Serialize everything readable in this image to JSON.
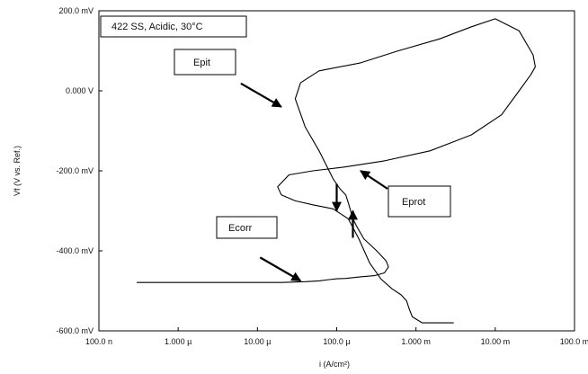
{
  "chart_data": {
    "type": "line",
    "title": "422 SS, Acidic, 30°C",
    "xlabel": "i (A/cm²)",
    "ylabel": "Vf (V vs. Ref.)",
    "x_scale": "log",
    "xlim": [
      1e-07,
      0.1
    ],
    "ylim": [
      -0.6,
      0.2
    ],
    "x_tick_labels": [
      "100.0 n",
      "1.000 µ",
      "10.00 µ",
      "100.0 µ",
      "1.000 m",
      "10.00 m",
      "100.0 m"
    ],
    "y_tick_labels": [
      "200.0 mV",
      "0.000 V",
      "-200.0 mV",
      "-400.0 mV",
      "-600.0 mV"
    ],
    "grid": false,
    "series": [
      {
        "x": [
          3e-07,
          5e-06,
          2e-05,
          4e-05,
          6e-05,
          8e-05,
          0.0001,
          0.00013,
          0.00016,
          0.0002,
          0.0003,
          0.0004,
          0.00045,
          0.00042,
          0.00032,
          0.00022,
          0.00018,
          0.00016,
          0.00015,
          0.00014,
          0.00013,
          0.00011,
          9e-05,
          6e-05,
          4e-05,
          3e-05,
          3.5e-05,
          6e-05,
          0.0002,
          0.0006,
          0.002,
          0.005,
          0.01,
          0.02,
          0.03,
          0.032,
          0.028,
          0.02,
          0.012,
          0.005,
          0.0015,
          0.0004,
          0.00013,
          5e-05,
          2.5e-05,
          1.8e-05,
          2e-05,
          3e-05,
          5e-05,
          9e-05,
          0.00014,
          0.00019,
          0.00026,
          0.00036,
          0.0005,
          0.00065,
          0.00076,
          0.00082,
          0.0009,
          0.0012,
          0.003
        ],
        "y": [
          -0.479,
          -0.479,
          -0.479,
          -0.477,
          -0.475,
          -0.472,
          -0.47,
          -0.469,
          -0.467,
          -0.465,
          -0.462,
          -0.455,
          -0.44,
          -0.425,
          -0.4,
          -0.37,
          -0.34,
          -0.32,
          -0.3,
          -0.28,
          -0.26,
          -0.245,
          -0.22,
          -0.15,
          -0.09,
          -0.02,
          0.02,
          0.05,
          0.07,
          0.1,
          0.13,
          0.16,
          0.18,
          0.15,
          0.09,
          0.06,
          0.04,
          0.0,
          -0.06,
          -0.11,
          -0.15,
          -0.175,
          -0.19,
          -0.2,
          -0.21,
          -0.24,
          -0.26,
          -0.275,
          -0.285,
          -0.295,
          -0.32,
          -0.37,
          -0.43,
          -0.47,
          -0.495,
          -0.51,
          -0.525,
          -0.545,
          -0.565,
          -0.58,
          -0.58
        ]
      }
    ],
    "annotations": [
      {
        "label": "Epit",
        "x": 2e-05,
        "y": -0.04,
        "arrow": "down-right"
      },
      {
        "label": "Eprot",
        "x": 0.0002,
        "y": -0.2,
        "arrow": "up-left"
      },
      {
        "label": "Ecorr",
        "x": 3.5e-05,
        "y": -0.475,
        "arrow": "down-right"
      },
      {
        "label": "",
        "x": 0.0001,
        "y": -0.3,
        "arrow": "down"
      },
      {
        "label": "",
        "x": 0.00016,
        "y": -0.3,
        "arrow": "up"
      }
    ]
  }
}
